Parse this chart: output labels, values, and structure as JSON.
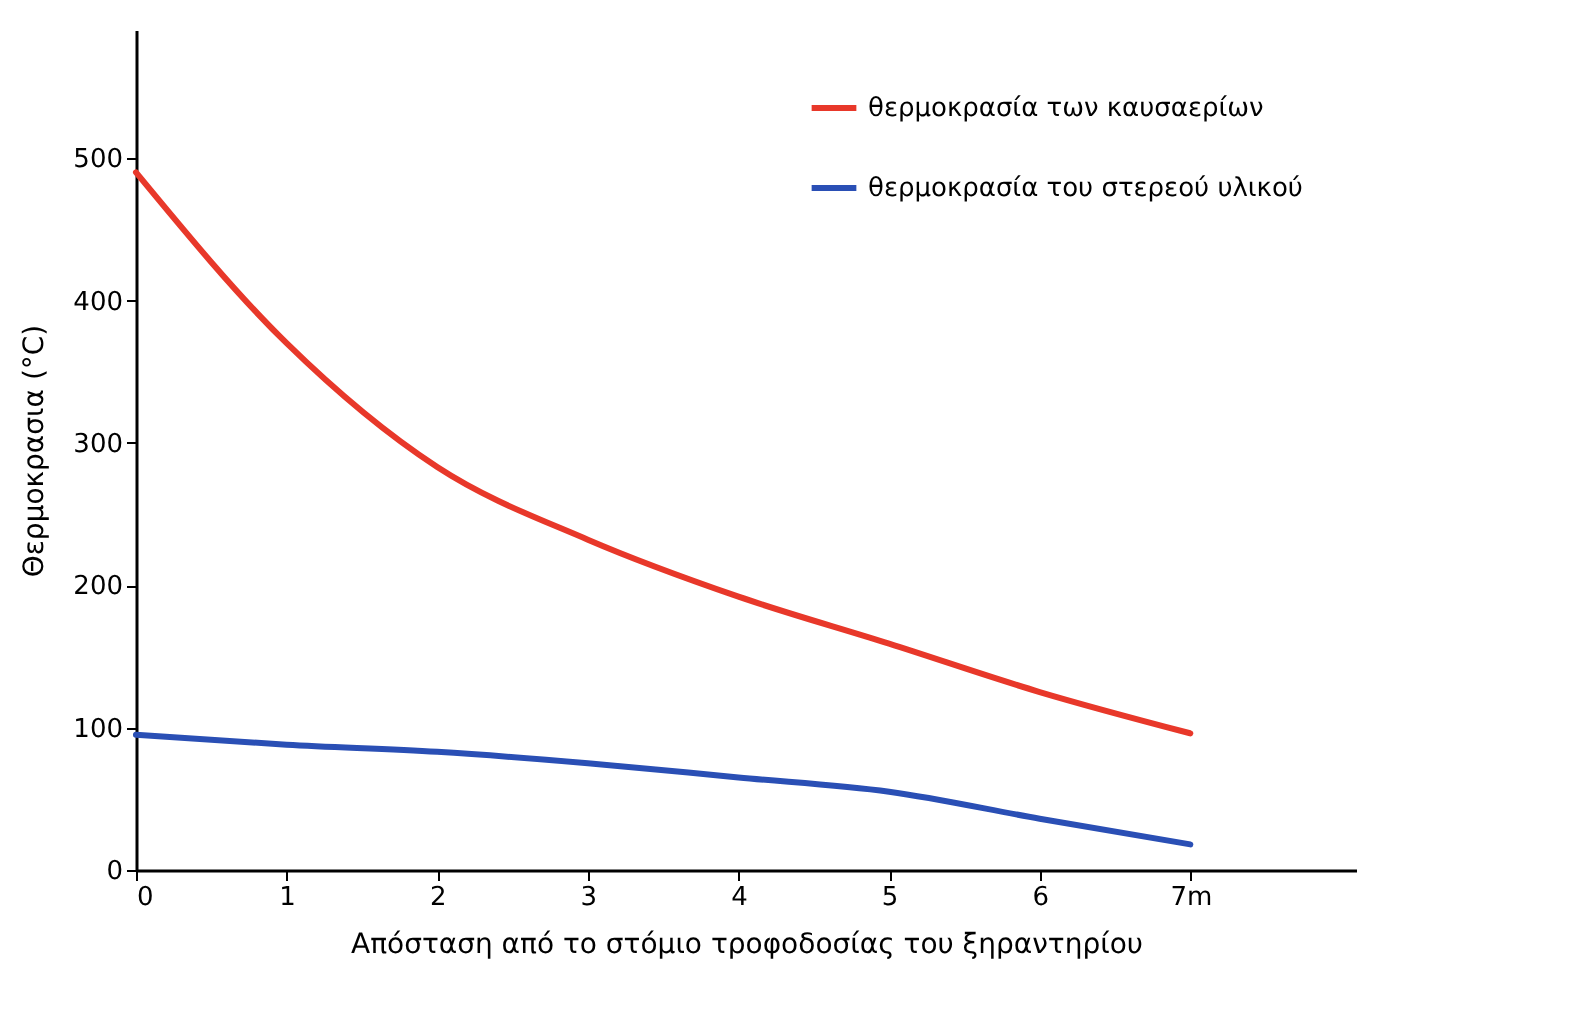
{
  "chart_data": {
    "type": "line",
    "xlabel": "Απόσταση από το στόμιο τροφοδοσίας του ξηραντηρίου",
    "ylabel": "Θερμοκρασια (°C)",
    "x": [
      0,
      1,
      2,
      3,
      4,
      5,
      6,
      7
    ],
    "series": [
      {
        "name": "θερμοκρασία των καυσαερίων",
        "color": "#e8382a",
        "values": [
          490,
          370,
          283,
          232,
          192,
          159,
          125,
          96
        ]
      },
      {
        "name": "θερμοκρασία του στερεού υλικού",
        "color": "#2a4fb5",
        "values": [
          95,
          88,
          83,
          75,
          65,
          55,
          36,
          18
        ]
      }
    ],
    "xlim": [
      0,
      8.1
    ],
    "xticks": [
      0,
      1,
      2,
      3,
      4,
      5,
      6,
      {
        "value": 7,
        "label": "7m"
      }
    ],
    "ylim": [
      0,
      590
    ],
    "yticks": [
      0,
      100,
      200,
      300,
      400,
      500
    ],
    "grid": false,
    "legend": "top right",
    "marker": "none",
    "line_style": "solid"
  }
}
